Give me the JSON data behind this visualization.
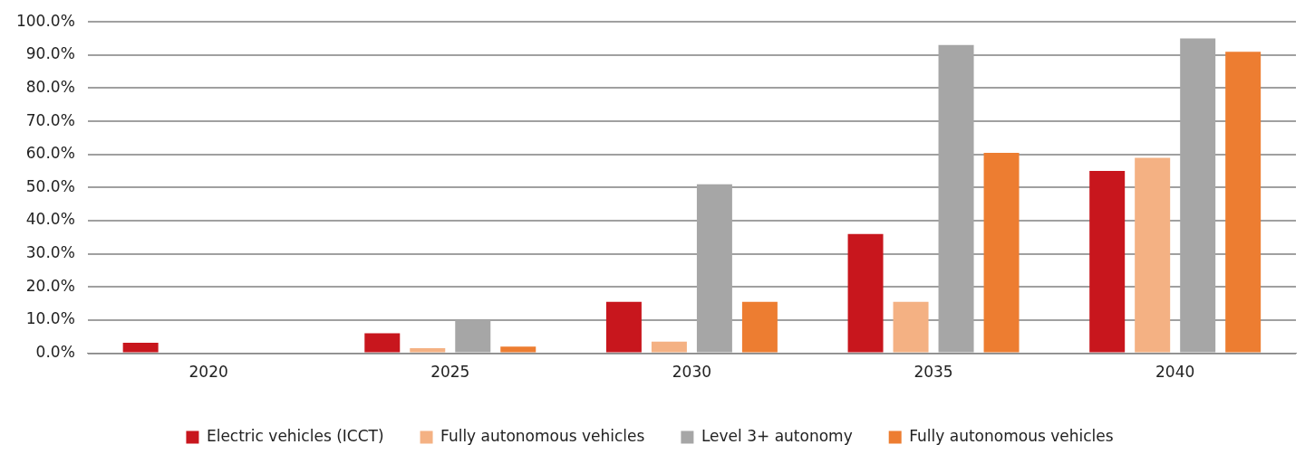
{
  "chart_data": {
    "type": "bar",
    "categories": [
      "2020",
      "2025",
      "2030",
      "2035",
      "2040"
    ],
    "series": [
      {
        "name": "Electric vehicles (ICCT)",
        "color": "#c8161d",
        "values": [
          3.2,
          6,
          15.5,
          36,
          55
        ]
      },
      {
        "name": "Fully autonomous vehicles",
        "color": "#f4b183",
        "values": [
          0,
          1.5,
          3.5,
          15.5,
          59
        ]
      },
      {
        "name": "Level 3+ autonomy",
        "color": "#a6a6a6",
        "values": [
          0,
          10,
          51,
          93,
          95
        ]
      },
      {
        "name": "Fully autonomous vehicles",
        "color": "#ed7d31",
        "values": [
          0,
          2,
          15.5,
          60.5,
          91
        ]
      }
    ],
    "ylim": [
      0,
      100
    ],
    "yticks": [
      {
        "value": 0,
        "label": "0.0%"
      },
      {
        "value": 10,
        "label": "10.0%"
      },
      {
        "value": 20,
        "label": "20.0%"
      },
      {
        "value": 30,
        "label": "30.0%"
      },
      {
        "value": 40,
        "label": "40.0%"
      },
      {
        "value": 50,
        "label": "50.0%"
      },
      {
        "value": 60,
        "label": "60.0%"
      },
      {
        "value": 70,
        "label": "70.0%"
      },
      {
        "value": 80,
        "label": "80.0%"
      },
      {
        "value": 90,
        "label": "90.0%"
      },
      {
        "value": 100,
        "label": "100.0%"
      }
    ],
    "grid": "y",
    "legend": "bottom"
  }
}
